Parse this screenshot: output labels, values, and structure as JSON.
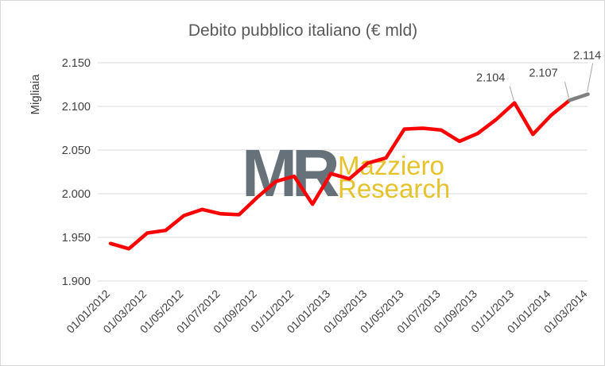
{
  "chart_data": {
    "type": "line",
    "title": "Debito pubblico italiano (€ mld)",
    "ylabel": "Migliaia",
    "xlabel": "",
    "ylim": [
      1.9,
      2.15
    ],
    "y_ticks": [
      "1.900",
      "1.950",
      "2.000",
      "2.050",
      "2.100",
      "2.150"
    ],
    "x_tick_labels": [
      "01/01/2012",
      "01/03/2012",
      "01/05/2012",
      "01/07/2012",
      "01/09/2012",
      "01/11/2012",
      "01/01/2013",
      "01/03/2013",
      "01/05/2013",
      "01/07/2013",
      "01/09/2013",
      "01/11/2013",
      "01/01/2014",
      "01/03/2014"
    ],
    "grid": "horizontal",
    "series": [
      {
        "color": "#ff0000",
        "x": [
          "01/01/2012",
          "01/02/2012",
          "01/03/2012",
          "01/04/2012",
          "01/05/2012",
          "01/06/2012",
          "01/07/2012",
          "01/08/2012",
          "01/09/2012",
          "01/10/2012",
          "01/11/2012",
          "01/12/2012",
          "01/01/2013",
          "01/02/2013",
          "01/03/2013",
          "01/04/2013",
          "01/05/2013",
          "01/06/2013",
          "01/07/2013",
          "01/08/2013",
          "01/09/2013",
          "01/10/2013",
          "01/11/2013",
          "01/12/2013",
          "01/01/2014",
          "01/02/2014"
        ],
        "values": [
          1.943,
          1.937,
          1.955,
          1.958,
          1.975,
          1.982,
          1.977,
          1.976,
          1.996,
          2.014,
          2.02,
          1.988,
          2.023,
          2.017,
          2.035,
          2.041,
          2.074,
          2.075,
          2.073,
          2.06,
          2.069,
          2.085,
          2.104,
          2.068,
          2.09,
          2.107
        ]
      },
      {
        "color": "#7f7f7f",
        "x": [
          "01/02/2014",
          "01/03/2014"
        ],
        "values": [
          2.107,
          2.114
        ]
      }
    ],
    "data_labels": [
      "2.104",
      "2.107",
      "2.114"
    ]
  },
  "watermark": {
    "logo_text": "MR",
    "line1": "Mazziero",
    "line2": "Research",
    "logo_color": "#5b6770",
    "text_color": "#e6c22c"
  }
}
